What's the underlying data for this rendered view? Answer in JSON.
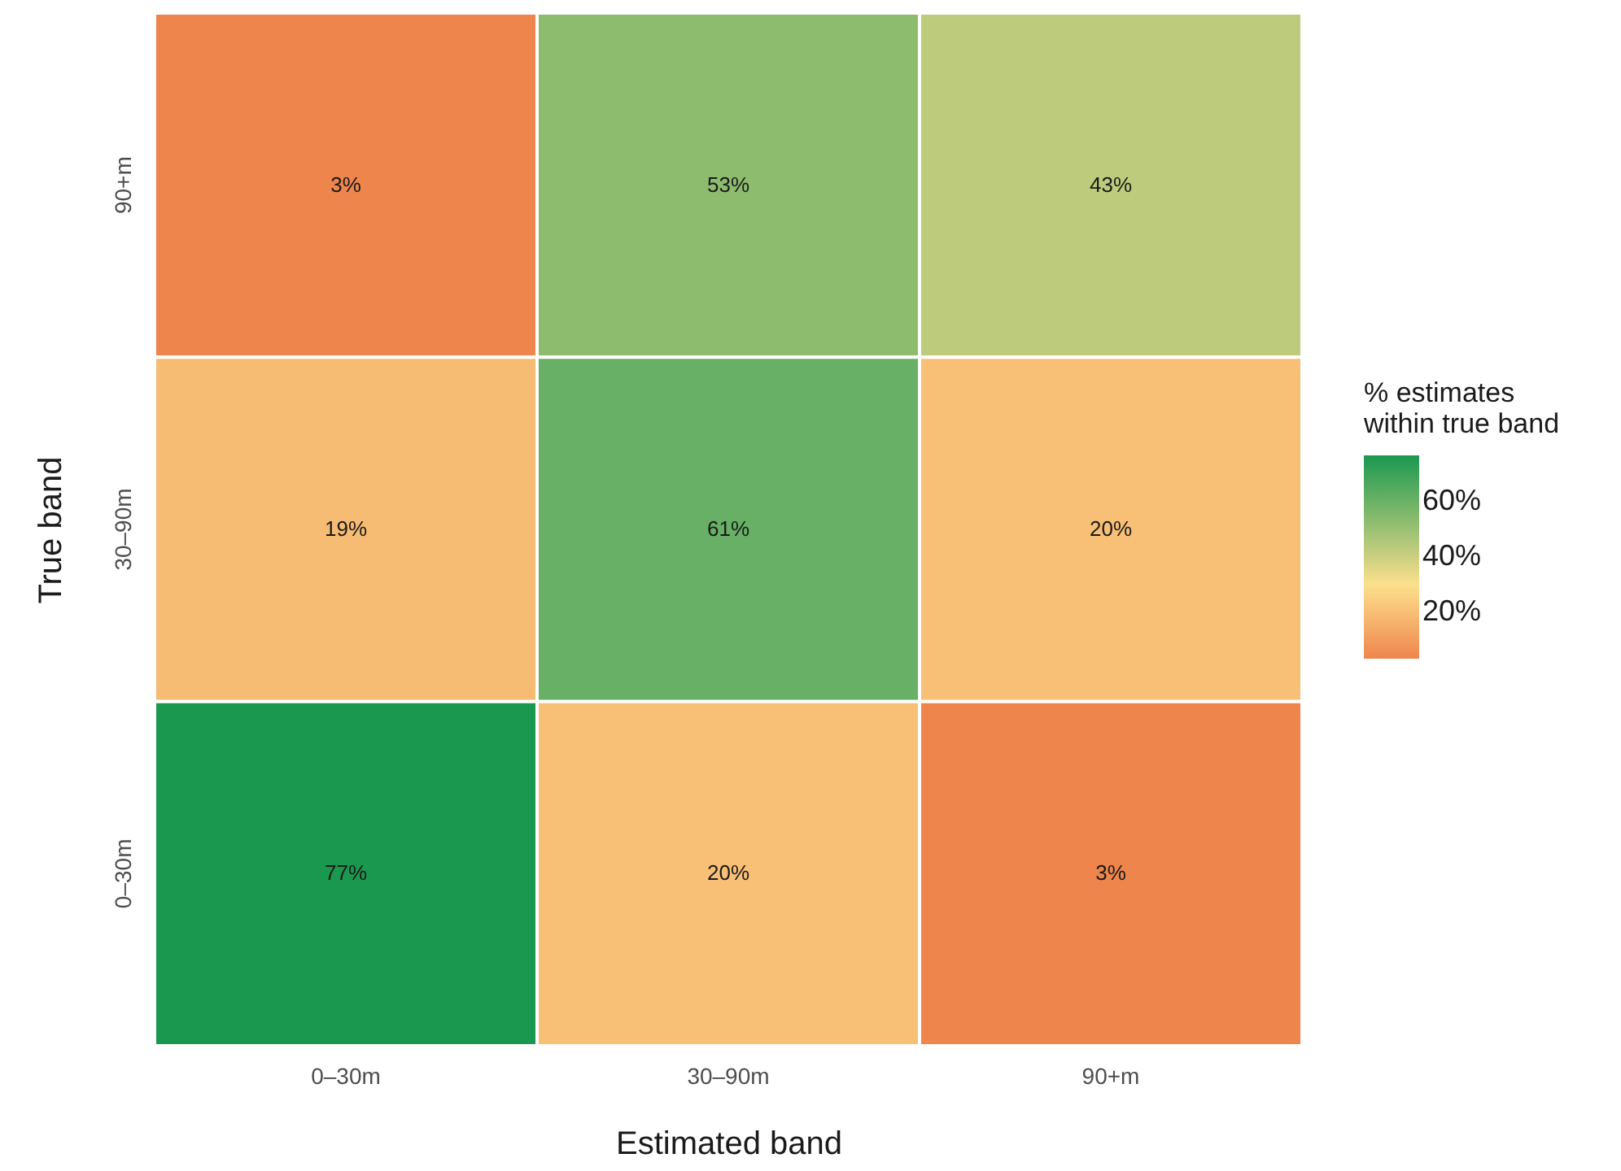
{
  "chart_data": {
    "type": "heatmap",
    "xlabel": "Estimated band",
    "ylabel": "True band",
    "legend_title": "% estimates\nwithin true band",
    "categories": [
      "0–30m",
      "30–90m",
      "90+m"
    ],
    "y_categories": [
      "90+m",
      "30–90m",
      "0–30m"
    ],
    "cells": [
      [
        3,
        53,
        43
      ],
      [
        19,
        61,
        20
      ],
      [
        77,
        20,
        3
      ]
    ],
    "cell_labels": [
      [
        "3%",
        "53%",
        "43%"
      ],
      [
        "19%",
        "61%",
        "20%"
      ],
      [
        "77%",
        "20%",
        "3%"
      ]
    ],
    "clim": [
      3,
      77
    ],
    "cticks": [
      {
        "value": 20,
        "label": "20%"
      },
      {
        "value": 40,
        "label": "40%"
      },
      {
        "value": 60,
        "label": "60%"
      }
    ]
  }
}
